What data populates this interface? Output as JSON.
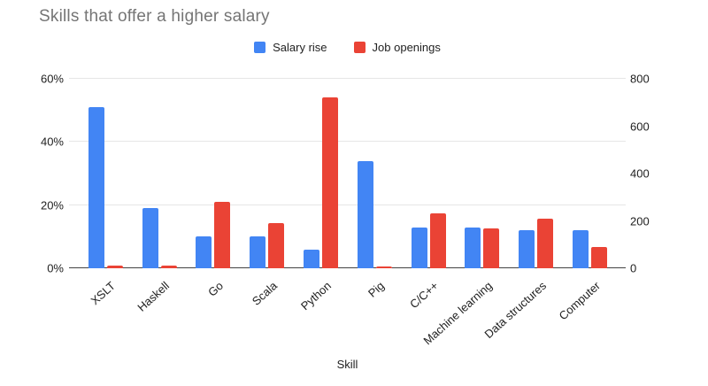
{
  "title": "Skills that offer a higher salary",
  "legend": {
    "items": [
      {
        "label": "Salary rise",
        "color": "#4285F4"
      },
      {
        "label": "Job openings",
        "color": "#EA4335"
      }
    ]
  },
  "x_axis_title": "Skill",
  "chart_data": {
    "type": "bar",
    "title": "Skills that offer a higher salary",
    "categories": [
      "XSLT",
      "Haskell",
      "Go",
      "Scala",
      "Python",
      "Pig",
      "C/C++",
      "Machine learning",
      "Data structures",
      "Computer"
    ],
    "series": [
      {
        "name": "Salary rise",
        "color": "#4285F4",
        "axis": "left",
        "unit": "%",
        "values": [
          51,
          19,
          10,
          10,
          6,
          34,
          13,
          13,
          12,
          12
        ]
      },
      {
        "name": "Job openings",
        "color": "#EA4335",
        "axis": "right",
        "unit": "count",
        "values": [
          10,
          10,
          280,
          190,
          720,
          6,
          230,
          170,
          210,
          90
        ]
      }
    ],
    "xlabel": "Skill",
    "ylabel_left": "",
    "ylabel_right": "",
    "left_axis": {
      "tick_labels": [
        "0%",
        "20%",
        "40%",
        "60%"
      ],
      "min": 0,
      "max": 60
    },
    "right_axis": {
      "tick_labels": [
        "0",
        "200",
        "400",
        "600",
        "800"
      ],
      "min": 0,
      "max": 800
    },
    "legend_position": "top",
    "grid": "horizontal",
    "bar_corner_radius": 2,
    "gridline_color": "#e6e6e6",
    "axis_line_color": "#424242",
    "title_color": "#757575"
  }
}
